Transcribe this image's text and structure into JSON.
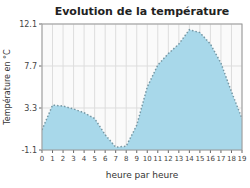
{
  "chart_data": {
    "type": "area",
    "title": "Evolution de la température",
    "x_label": "heure par heure",
    "y_label": "Température en °C",
    "x": [
      0,
      1,
      2,
      3,
      4,
      5,
      6,
      7,
      8,
      9,
      10,
      11,
      12,
      13,
      14,
      15,
      16,
      17,
      18,
      19
    ],
    "values": [
      1.0,
      3.6,
      3.5,
      3.2,
      2.8,
      2.2,
      0.5,
      -0.8,
      -0.7,
      1.5,
      5.5,
      7.8,
      9.0,
      10.0,
      11.5,
      11.2,
      10.0,
      8.0,
      5.0,
      2.2
    ],
    "color": "#a8d8ea",
    "line_style": "dotted",
    "xlim": [
      0,
      19
    ],
    "xticks": [
      0,
      1,
      2,
      3,
      4,
      5,
      6,
      7,
      8,
      9,
      10,
      11,
      12,
      13,
      14,
      15,
      16,
      17,
      18,
      19
    ],
    "ylim": [
      -1.1,
      12.1
    ],
    "yticks": [
      -1.1,
      3.3,
      7.7,
      12.1
    ],
    "grid": true
  }
}
